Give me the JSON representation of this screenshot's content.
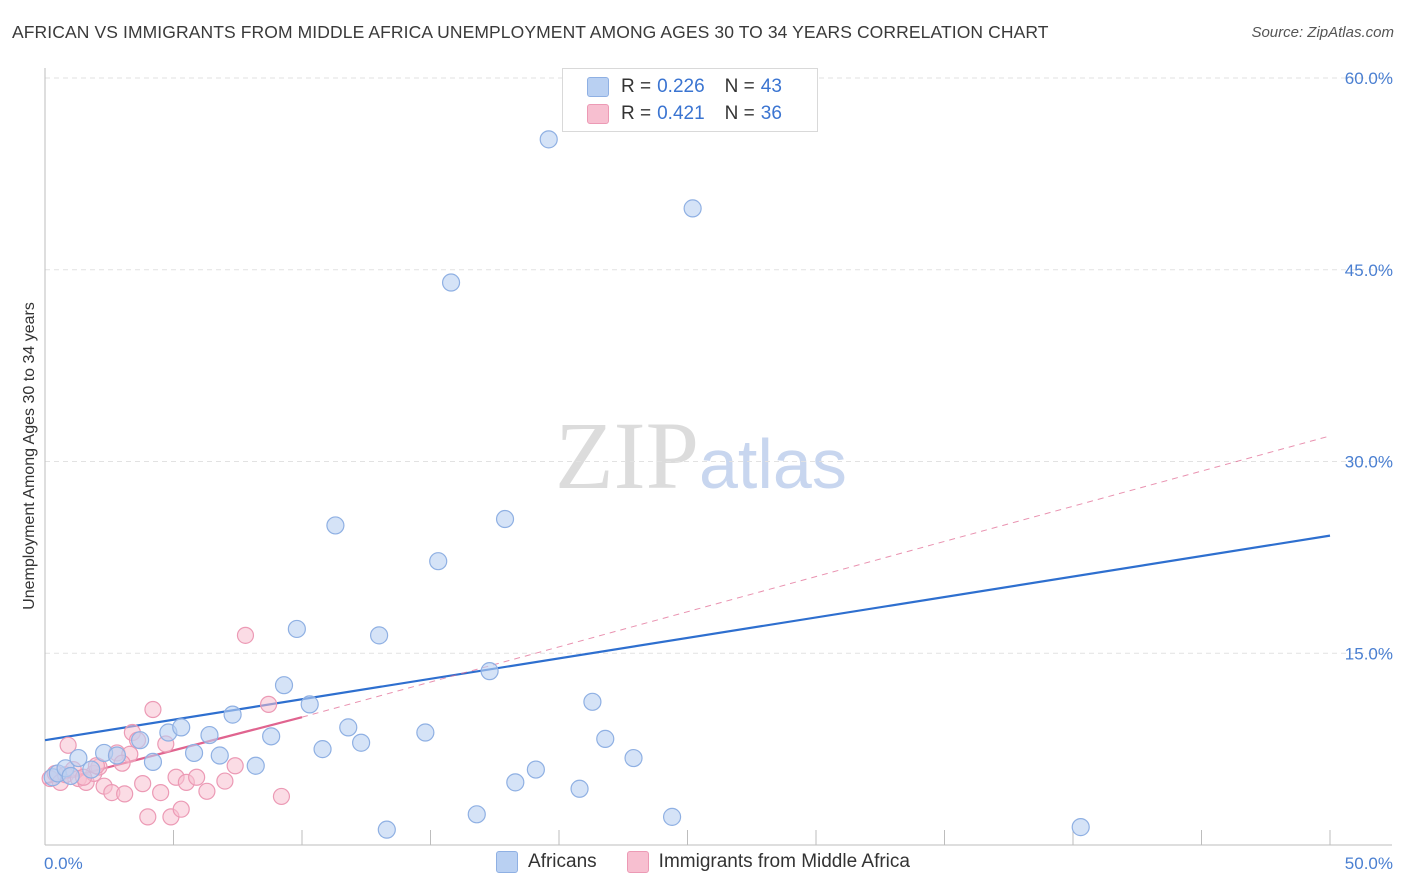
{
  "title": "AFRICAN VS IMMIGRANTS FROM MIDDLE AFRICA UNEMPLOYMENT AMONG AGES 30 TO 34 YEARS CORRELATION CHART",
  "source": "Source: ZipAtlas.com",
  "watermark": {
    "zip": "ZIP",
    "atlas": "atlas"
  },
  "legend": {
    "series1": {
      "r_label": "R =",
      "r_value": "0.226",
      "n_label": "N =",
      "n_value": "43"
    },
    "series2": {
      "r_label": "R =",
      "r_value": "0.421",
      "n_label": "N =",
      "n_value": "36"
    }
  },
  "bottom_legend": {
    "series1": "Africans",
    "series2": "Immigrants from Middle Africa"
  },
  "colors": {
    "blue_fill": "#b9d0f2",
    "blue_stroke": "#8fb0e3",
    "blue_line": "#2e6fcf",
    "pink_fill": "#f7bfd0",
    "pink_stroke": "#ec9ab5",
    "pink_line": "#e0648f",
    "grid": "#e2e2e2",
    "tick_text": "#4a7fd1"
  },
  "chart_data": {
    "type": "scatter",
    "title": "AFRICAN VS IMMIGRANTS FROM MIDDLE AFRICA UNEMPLOYMENT AMONG AGES 30 TO 34 YEARS CORRELATION CHART",
    "xlabel": "",
    "ylabel": "Unemployment Among Ages 30 to 34 years",
    "xlim": [
      0,
      50
    ],
    "ylim": [
      0,
      60
    ],
    "x_tick_labels": [
      "0.0%",
      "50.0%"
    ],
    "y_ticks": [
      15,
      30,
      45,
      60
    ],
    "y_tick_labels": [
      "15.0%",
      "30.0%",
      "45.0%",
      "60.0%"
    ],
    "series": [
      {
        "name": "Africans",
        "points": [
          [
            0.3,
            5.3
          ],
          [
            0.5,
            5.6
          ],
          [
            0.8,
            6.0
          ],
          [
            1.0,
            5.4
          ],
          [
            1.3,
            6.8
          ],
          [
            1.8,
            5.9
          ],
          [
            2.3,
            7.2
          ],
          [
            2.8,
            7.0
          ],
          [
            3.7,
            8.2
          ],
          [
            4.2,
            6.5
          ],
          [
            4.8,
            8.8
          ],
          [
            5.3,
            9.2
          ],
          [
            5.8,
            7.2
          ],
          [
            6.4,
            8.6
          ],
          [
            6.8,
            7.0
          ],
          [
            7.3,
            10.2
          ],
          [
            8.2,
            6.2
          ],
          [
            8.8,
            8.5
          ],
          [
            9.3,
            12.5
          ],
          [
            9.8,
            16.9
          ],
          [
            10.3,
            11.0
          ],
          [
            10.8,
            7.5
          ],
          [
            11.3,
            25.0
          ],
          [
            11.8,
            9.2
          ],
          [
            12.3,
            8.0
          ],
          [
            13.0,
            16.4
          ],
          [
            13.3,
            1.2
          ],
          [
            14.8,
            8.8
          ],
          [
            15.3,
            22.2
          ],
          [
            15.8,
            44.0
          ],
          [
            16.8,
            2.4
          ],
          [
            17.3,
            13.6
          ],
          [
            17.9,
            25.5
          ],
          [
            18.3,
            4.9
          ],
          [
            19.1,
            5.9
          ],
          [
            19.6,
            55.2
          ],
          [
            20.8,
            4.4
          ],
          [
            21.3,
            11.2
          ],
          [
            21.8,
            8.3
          ],
          [
            22.9,
            6.8
          ],
          [
            24.4,
            2.2
          ],
          [
            25.2,
            49.8
          ],
          [
            40.3,
            1.4
          ]
        ],
        "trend": {
          "x": [
            0,
            50
          ],
          "y": [
            8.2,
            24.2
          ]
        }
      },
      {
        "name": "Immigrants from Middle Africa",
        "points": [
          [
            0.2,
            5.2
          ],
          [
            0.4,
            5.6
          ],
          [
            0.6,
            4.9
          ],
          [
            0.8,
            5.5
          ],
          [
            1.1,
            5.9
          ],
          [
            1.3,
            5.2
          ],
          [
            1.6,
            4.9
          ],
          [
            1.9,
            5.6
          ],
          [
            2.1,
            6.1
          ],
          [
            2.3,
            4.6
          ],
          [
            2.6,
            4.1
          ],
          [
            2.8,
            7.2
          ],
          [
            3.1,
            4.0
          ],
          [
            3.3,
            7.1
          ],
          [
            3.4,
            8.8
          ],
          [
            3.6,
            8.2
          ],
          [
            3.8,
            4.8
          ],
          [
            4.0,
            2.2
          ],
          [
            4.2,
            10.6
          ],
          [
            4.5,
            4.1
          ],
          [
            4.7,
            7.9
          ],
          [
            4.9,
            2.2
          ],
          [
            5.1,
            5.3
          ],
          [
            5.3,
            2.8
          ],
          [
            5.5,
            4.9
          ],
          [
            5.9,
            5.3
          ],
          [
            6.3,
            4.2
          ],
          [
            7.0,
            5.0
          ],
          [
            7.4,
            6.2
          ],
          [
            7.8,
            16.4
          ],
          [
            8.7,
            11.0
          ],
          [
            9.2,
            3.8
          ],
          [
            1.5,
            5.3
          ],
          [
            2.0,
            6.2
          ],
          [
            0.9,
            7.8
          ],
          [
            3.0,
            6.4
          ]
        ],
        "trend": {
          "x": [
            0,
            10
          ],
          "y": [
            4.8,
            10.0
          ]
        },
        "trend_extended": {
          "x": [
            10,
            50
          ],
          "y": [
            10.0,
            32.0
          ]
        }
      }
    ]
  }
}
